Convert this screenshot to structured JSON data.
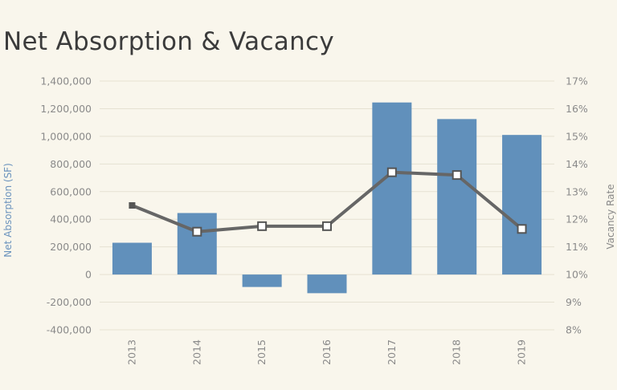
{
  "chart_data": {
    "type": "bar",
    "title": "Net Absorption & Vacancy",
    "categories": [
      "2013",
      "2014",
      "2015",
      "2016",
      "2017",
      "2018",
      "2019"
    ],
    "series": [
      {
        "name": "Net Absorption (SF)",
        "type": "bar",
        "axis": "left",
        "color": "#6190bb",
        "values": [
          230000,
          445000,
          -90000,
          -135000,
          1245000,
          1125000,
          1010000
        ]
      },
      {
        "name": "Vacancy Rate",
        "type": "line",
        "axis": "right",
        "color": "#666666",
        "values": [
          12.5,
          11.55,
          11.75,
          11.75,
          13.7,
          13.6,
          11.65
        ]
      }
    ],
    "ylabel": "Net Absorption (SF)",
    "y2label": "Vacancy Rate",
    "ylim": [
      -400000,
      1400000
    ],
    "y2lim": [
      8,
      17
    ],
    "yticks": [
      "-400,000",
      "-200,000",
      "0",
      "200,000",
      "400,000",
      "600,000",
      "800,000",
      "1,000,000",
      "1,200,000",
      "1,400,000"
    ],
    "y2ticks": [
      "8%",
      "9%",
      "10%",
      "11%",
      "12%",
      "13%",
      "14%",
      "15%",
      "16%",
      "17%"
    ],
    "grid": true,
    "legend": "none"
  }
}
